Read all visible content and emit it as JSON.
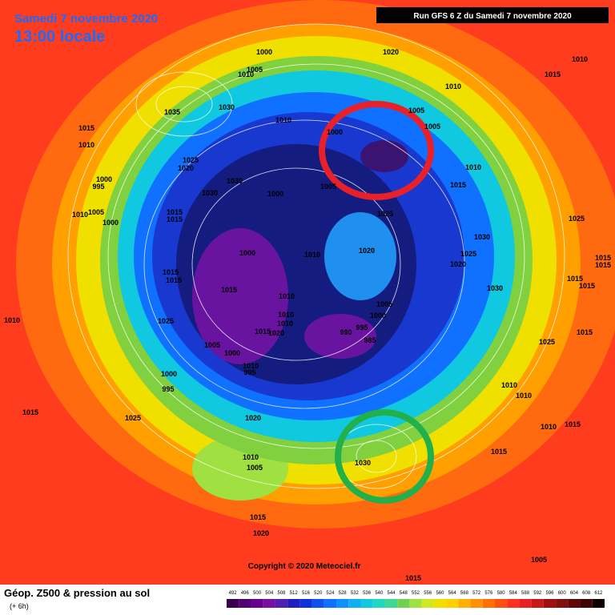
{
  "header": {
    "date": "Samedi 7 novembre 2020",
    "time": "13:00 locale",
    "run": "Run GFS 6 Z du Samedi 7 novembre 2020"
  },
  "isobar_labels": [
    "1000",
    "1005",
    "1010",
    "1020",
    "1010",
    "1015",
    "1010",
    "1035",
    "1030",
    "1015",
    "1010",
    "1010",
    "1005",
    "1000",
    "1005",
    "1025",
    "1020",
    "1030",
    "1030",
    "1000",
    "995",
    "1005",
    "1010",
    "1000",
    "1015",
    "1015",
    "1000",
    "1005",
    "1010",
    "1015",
    "1025",
    "1025",
    "1030",
    "1025",
    "1020",
    "1020",
    "1010",
    "1000",
    "1015",
    "1015",
    "1015",
    "1010",
    "1030",
    "1015",
    "1015",
    "1015",
    "1015",
    "1005",
    "1000",
    "1025",
    "1010",
    "1010",
    "1010",
    "995",
    "990",
    "985",
    "1020",
    "1015",
    "1005",
    "1000",
    "1010",
    "995",
    "1000",
    "995",
    "1025",
    "1015",
    "1010",
    "1010",
    "1015",
    "1025",
    "1020",
    "1010",
    "1005",
    "1030",
    "1015",
    "1010",
    "1015",
    "1015",
    "1020",
    "1005",
    "1015"
  ],
  "copyright": "Copyright © 2020 Meteociel.fr",
  "footer": {
    "title": "Géop. Z500 & pression au sol",
    "subtitle": "(+ 6h)"
  },
  "scale": {
    "labels": [
      492,
      496,
      500,
      504,
      508,
      512,
      516,
      520,
      524,
      528,
      532,
      536,
      540,
      544,
      548,
      552,
      556,
      560,
      564,
      568,
      572,
      576,
      580,
      584,
      588,
      592,
      596,
      600,
      604,
      608,
      612
    ]
  }
}
